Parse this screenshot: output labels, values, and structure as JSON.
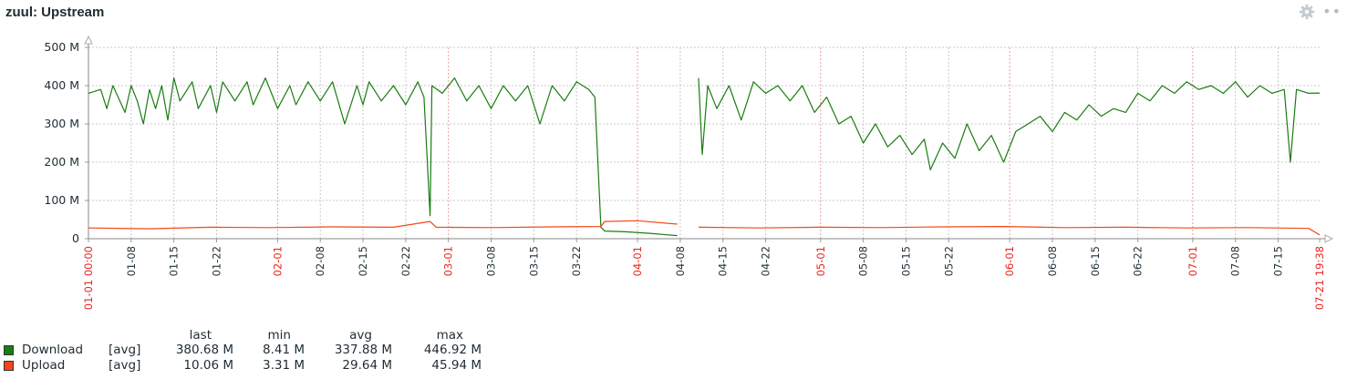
{
  "widget": {
    "title": "zuul: Upstream",
    "gear_icon": "gear-icon",
    "more_icon": "more-icon"
  },
  "chart_data": {
    "type": "line",
    "title": "zuul: Upstream",
    "ylim": [
      0,
      500
    ],
    "y_ticks": [
      {
        "value": 0,
        "label": "0"
      },
      {
        "value": 100,
        "label": "100 M"
      },
      {
        "value": 200,
        "label": "200 M"
      },
      {
        "value": 300,
        "label": "300 M"
      },
      {
        "value": 400,
        "label": "400 M"
      },
      {
        "value": 500,
        "label": "500 M"
      }
    ],
    "x_ticks": [
      {
        "day": 0,
        "label": "01-01 00:00",
        "major": true
      },
      {
        "day": 7,
        "label": "01-08"
      },
      {
        "day": 14,
        "label": "01-15"
      },
      {
        "day": 21,
        "label": "01-22"
      },
      {
        "day": 31,
        "label": "02-01",
        "major": true
      },
      {
        "day": 38,
        "label": "02-08"
      },
      {
        "day": 45,
        "label": "02-15"
      },
      {
        "day": 52,
        "label": "02-22"
      },
      {
        "day": 59,
        "label": "03-01",
        "major": true
      },
      {
        "day": 66,
        "label": "03-08"
      },
      {
        "day": 73,
        "label": "03-15"
      },
      {
        "day": 80,
        "label": "03-22"
      },
      {
        "day": 90,
        "label": "04-01",
        "major": true
      },
      {
        "day": 97,
        "label": "04-08"
      },
      {
        "day": 104,
        "label": "04-15"
      },
      {
        "day": 111,
        "label": "04-22"
      },
      {
        "day": 120,
        "label": "05-01",
        "major": true
      },
      {
        "day": 127,
        "label": "05-08"
      },
      {
        "day": 134,
        "label": "05-15"
      },
      {
        "day": 141,
        "label": "05-22"
      },
      {
        "day": 151,
        "label": "06-01",
        "major": true
      },
      {
        "day": 158,
        "label": "06-08"
      },
      {
        "day": 165,
        "label": "06-15"
      },
      {
        "day": 172,
        "label": "06-22"
      },
      {
        "day": 181,
        "label": "07-01",
        "major": true
      },
      {
        "day": 188,
        "label": "07-08"
      },
      {
        "day": 195,
        "label": "07-15"
      },
      {
        "day": 201.8,
        "label": "07-21 19:38",
        "major": true
      }
    ],
    "xlim_days": [
      0,
      201.8
    ],
    "grid": true,
    "series": [
      {
        "name": "Download",
        "color": "#1a7c11",
        "segments": [
          [
            [
              0,
              380
            ],
            [
              2,
              390
            ],
            [
              3,
              340
            ],
            [
              4,
              400
            ],
            [
              6,
              330
            ],
            [
              7,
              400
            ],
            [
              8,
              360
            ],
            [
              9,
              300
            ],
            [
              10,
              390
            ],
            [
              11,
              340
            ],
            [
              12,
              400
            ],
            [
              13,
              310
            ],
            [
              14,
              420
            ],
            [
              15,
              360
            ],
            [
              17,
              410
            ],
            [
              18,
              340
            ],
            [
              20,
              400
            ],
            [
              21,
              330
            ],
            [
              22,
              410
            ],
            [
              24,
              360
            ],
            [
              26,
              410
            ],
            [
              27,
              350
            ],
            [
              29,
              420
            ],
            [
              31,
              340
            ],
            [
              33,
              400
            ],
            [
              34,
              350
            ],
            [
              36,
              410
            ],
            [
              38,
              360
            ],
            [
              40,
              410
            ],
            [
              42,
              300
            ],
            [
              44,
              400
            ],
            [
              45,
              350
            ],
            [
              46,
              410
            ],
            [
              48,
              360
            ],
            [
              50,
              400
            ],
            [
              52,
              350
            ],
            [
              54,
              410
            ],
            [
              55,
              370
            ],
            [
              56,
              60
            ],
            [
              56.3,
              400
            ],
            [
              58,
              380
            ],
            [
              60,
              420
            ],
            [
              62,
              360
            ],
            [
              64,
              400
            ],
            [
              66,
              340
            ],
            [
              68,
              400
            ],
            [
              70,
              360
            ],
            [
              72,
              400
            ],
            [
              74,
              300
            ],
            [
              76,
              400
            ],
            [
              78,
              360
            ],
            [
              80,
              410
            ],
            [
              82,
              390
            ],
            [
              83,
              370
            ],
            [
              84,
              30
            ],
            [
              84.6,
              20
            ],
            [
              88,
              18
            ],
            [
              92,
              14
            ],
            [
              95,
              10
            ],
            [
              96.5,
              8
            ]
          ],
          [
            [
              100,
              420
            ],
            [
              100.6,
              220
            ],
            [
              101.5,
              400
            ],
            [
              103,
              340
            ],
            [
              105,
              400
            ],
            [
              107,
              310
            ],
            [
              109,
              410
            ],
            [
              111,
              380
            ],
            [
              113,
              400
            ],
            [
              115,
              360
            ],
            [
              117,
              400
            ],
            [
              119,
              330
            ],
            [
              121,
              370
            ],
            [
              123,
              300
            ],
            [
              125,
              320
            ],
            [
              127,
              250
            ],
            [
              129,
              300
            ],
            [
              131,
              240
            ],
            [
              133,
              270
            ],
            [
              135,
              220
            ],
            [
              137,
              260
            ],
            [
              138,
              180
            ],
            [
              140,
              250
            ],
            [
              142,
              210
            ],
            [
              144,
              300
            ],
            [
              146,
              230
            ],
            [
              148,
              270
            ],
            [
              150,
              200
            ],
            [
              152,
              280
            ],
            [
              154,
              300
            ],
            [
              156,
              320
            ],
            [
              158,
              280
            ],
            [
              160,
              330
            ],
            [
              162,
              310
            ],
            [
              164,
              350
            ],
            [
              166,
              320
            ],
            [
              168,
              340
            ],
            [
              170,
              330
            ],
            [
              172,
              380
            ],
            [
              174,
              360
            ],
            [
              176,
              400
            ],
            [
              178,
              380
            ],
            [
              180,
              410
            ],
            [
              182,
              390
            ],
            [
              184,
              400
            ],
            [
              186,
              380
            ],
            [
              188,
              410
            ],
            [
              190,
              370
            ],
            [
              192,
              400
            ],
            [
              194,
              380
            ],
            [
              196,
              390
            ],
            [
              197,
              200
            ],
            [
              198,
              390
            ],
            [
              200,
              380
            ],
            [
              201.8,
              380.68
            ]
          ]
        ]
      },
      {
        "name": "Upload",
        "color": "#f24816",
        "segments": [
          [
            [
              0,
              28
            ],
            [
              10,
              26
            ],
            [
              20,
              30
            ],
            [
              30,
              29
            ],
            [
              40,
              31
            ],
            [
              50,
              30
            ],
            [
              56,
              45
            ],
            [
              57,
              30
            ],
            [
              66,
              29
            ],
            [
              76,
              31
            ],
            [
              84,
              32
            ],
            [
              84.6,
              45
            ],
            [
              90,
              47
            ],
            [
              96.5,
              38
            ]
          ],
          [
            [
              100,
              30
            ],
            [
              110,
              28
            ],
            [
              120,
              30
            ],
            [
              130,
              29
            ],
            [
              140,
              31
            ],
            [
              150,
              32
            ],
            [
              160,
              29
            ],
            [
              170,
              30
            ],
            [
              180,
              28
            ],
            [
              190,
              29
            ],
            [
              200,
              27
            ],
            [
              201.8,
              10.06
            ]
          ]
        ]
      }
    ]
  },
  "legend": {
    "headers": {
      "last": "last",
      "min": "min",
      "avg": "avg",
      "max": "max"
    },
    "rows": [
      {
        "name": "Download",
        "func": "[avg]",
        "last": "380.68 M",
        "min": "8.41 M",
        "avg": "337.88 M",
        "max": "446.92 M",
        "color": "#1a7c11"
      },
      {
        "name": "Upload",
        "func": "[avg]",
        "last": "10.06 M",
        "min": "3.31 M",
        "avg": "29.64 M",
        "max": "45.94 M",
        "color": "#f24816"
      }
    ]
  }
}
